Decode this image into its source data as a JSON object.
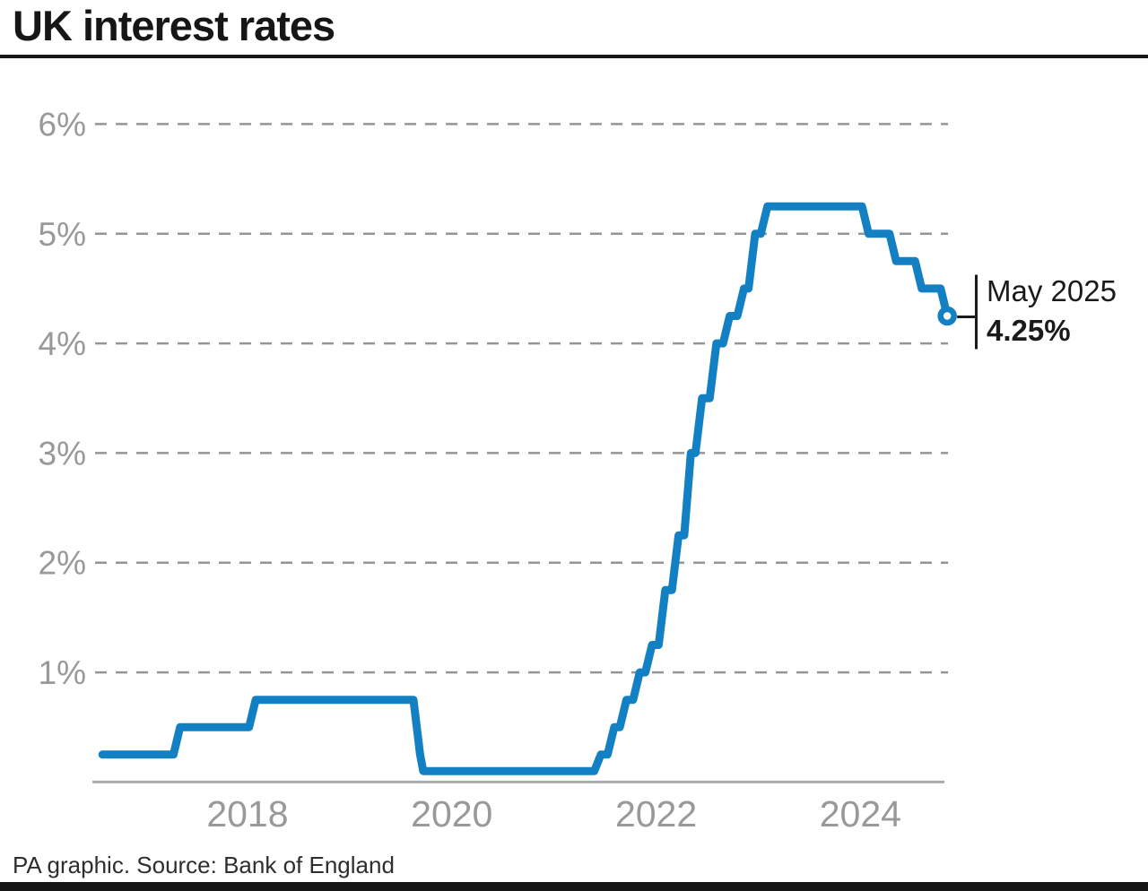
{
  "header": {
    "title": "UK interest rates"
  },
  "footer": {
    "credit": "PA graphic. Source: Bank of England"
  },
  "colors": {
    "line": "#1280c2",
    "marker_fill": "#ffffff",
    "grid": "#969696",
    "axis_line": "#ababab",
    "tick_text": "#999999",
    "annotation_black": "#1a1a1a"
  },
  "chart_data": {
    "type": "line",
    "title": "UK interest rates",
    "xlabel": "",
    "ylabel": "",
    "x_unit": "decimal_year",
    "xlim": [
      2017.05,
      2025.42
    ],
    "ylim": [
      0,
      6.35
    ],
    "grid": "horizontal-dashed",
    "legend": "none",
    "step_slope_years": 0.065,
    "y_ticks": [
      {
        "v": 6,
        "label": "6%"
      },
      {
        "v": 5,
        "label": "5%"
      },
      {
        "v": 4,
        "label": "4%"
      },
      {
        "v": 3,
        "label": "3%"
      },
      {
        "v": 2,
        "label": "2%"
      },
      {
        "v": 1,
        "label": "1%"
      }
    ],
    "x_ticks": [
      {
        "v": 2018.5,
        "label": "2018"
      },
      {
        "v": 2020.5,
        "label": "2020"
      },
      {
        "v": 2022.5,
        "label": "2022"
      },
      {
        "v": 2024.5,
        "label": "2024"
      }
    ],
    "series": [
      {
        "name": "UK interest rate",
        "points": [
          [
            2017.08,
            0.25
          ],
          [
            2017.84,
            0.5
          ],
          [
            2018.58,
            0.75
          ],
          [
            2020.19,
            0.25
          ],
          [
            2020.22,
            0.1
          ],
          [
            2021.96,
            0.25
          ],
          [
            2022.09,
            0.5
          ],
          [
            2022.21,
            0.75
          ],
          [
            2022.34,
            1.0
          ],
          [
            2022.46,
            1.25
          ],
          [
            2022.59,
            1.75
          ],
          [
            2022.72,
            2.25
          ],
          [
            2022.84,
            3.0
          ],
          [
            2022.95,
            3.5
          ],
          [
            2023.09,
            4.0
          ],
          [
            2023.22,
            4.25
          ],
          [
            2023.36,
            4.5
          ],
          [
            2023.47,
            5.0
          ],
          [
            2023.59,
            5.25
          ],
          [
            2024.58,
            5.0
          ],
          [
            2024.85,
            4.75
          ],
          [
            2025.1,
            4.5
          ],
          [
            2025.35,
            4.25
          ]
        ]
      }
    ],
    "annotation": {
      "x": 2025.35,
      "y": 4.25,
      "line1": "May 2025",
      "line2": "4.25%"
    }
  }
}
